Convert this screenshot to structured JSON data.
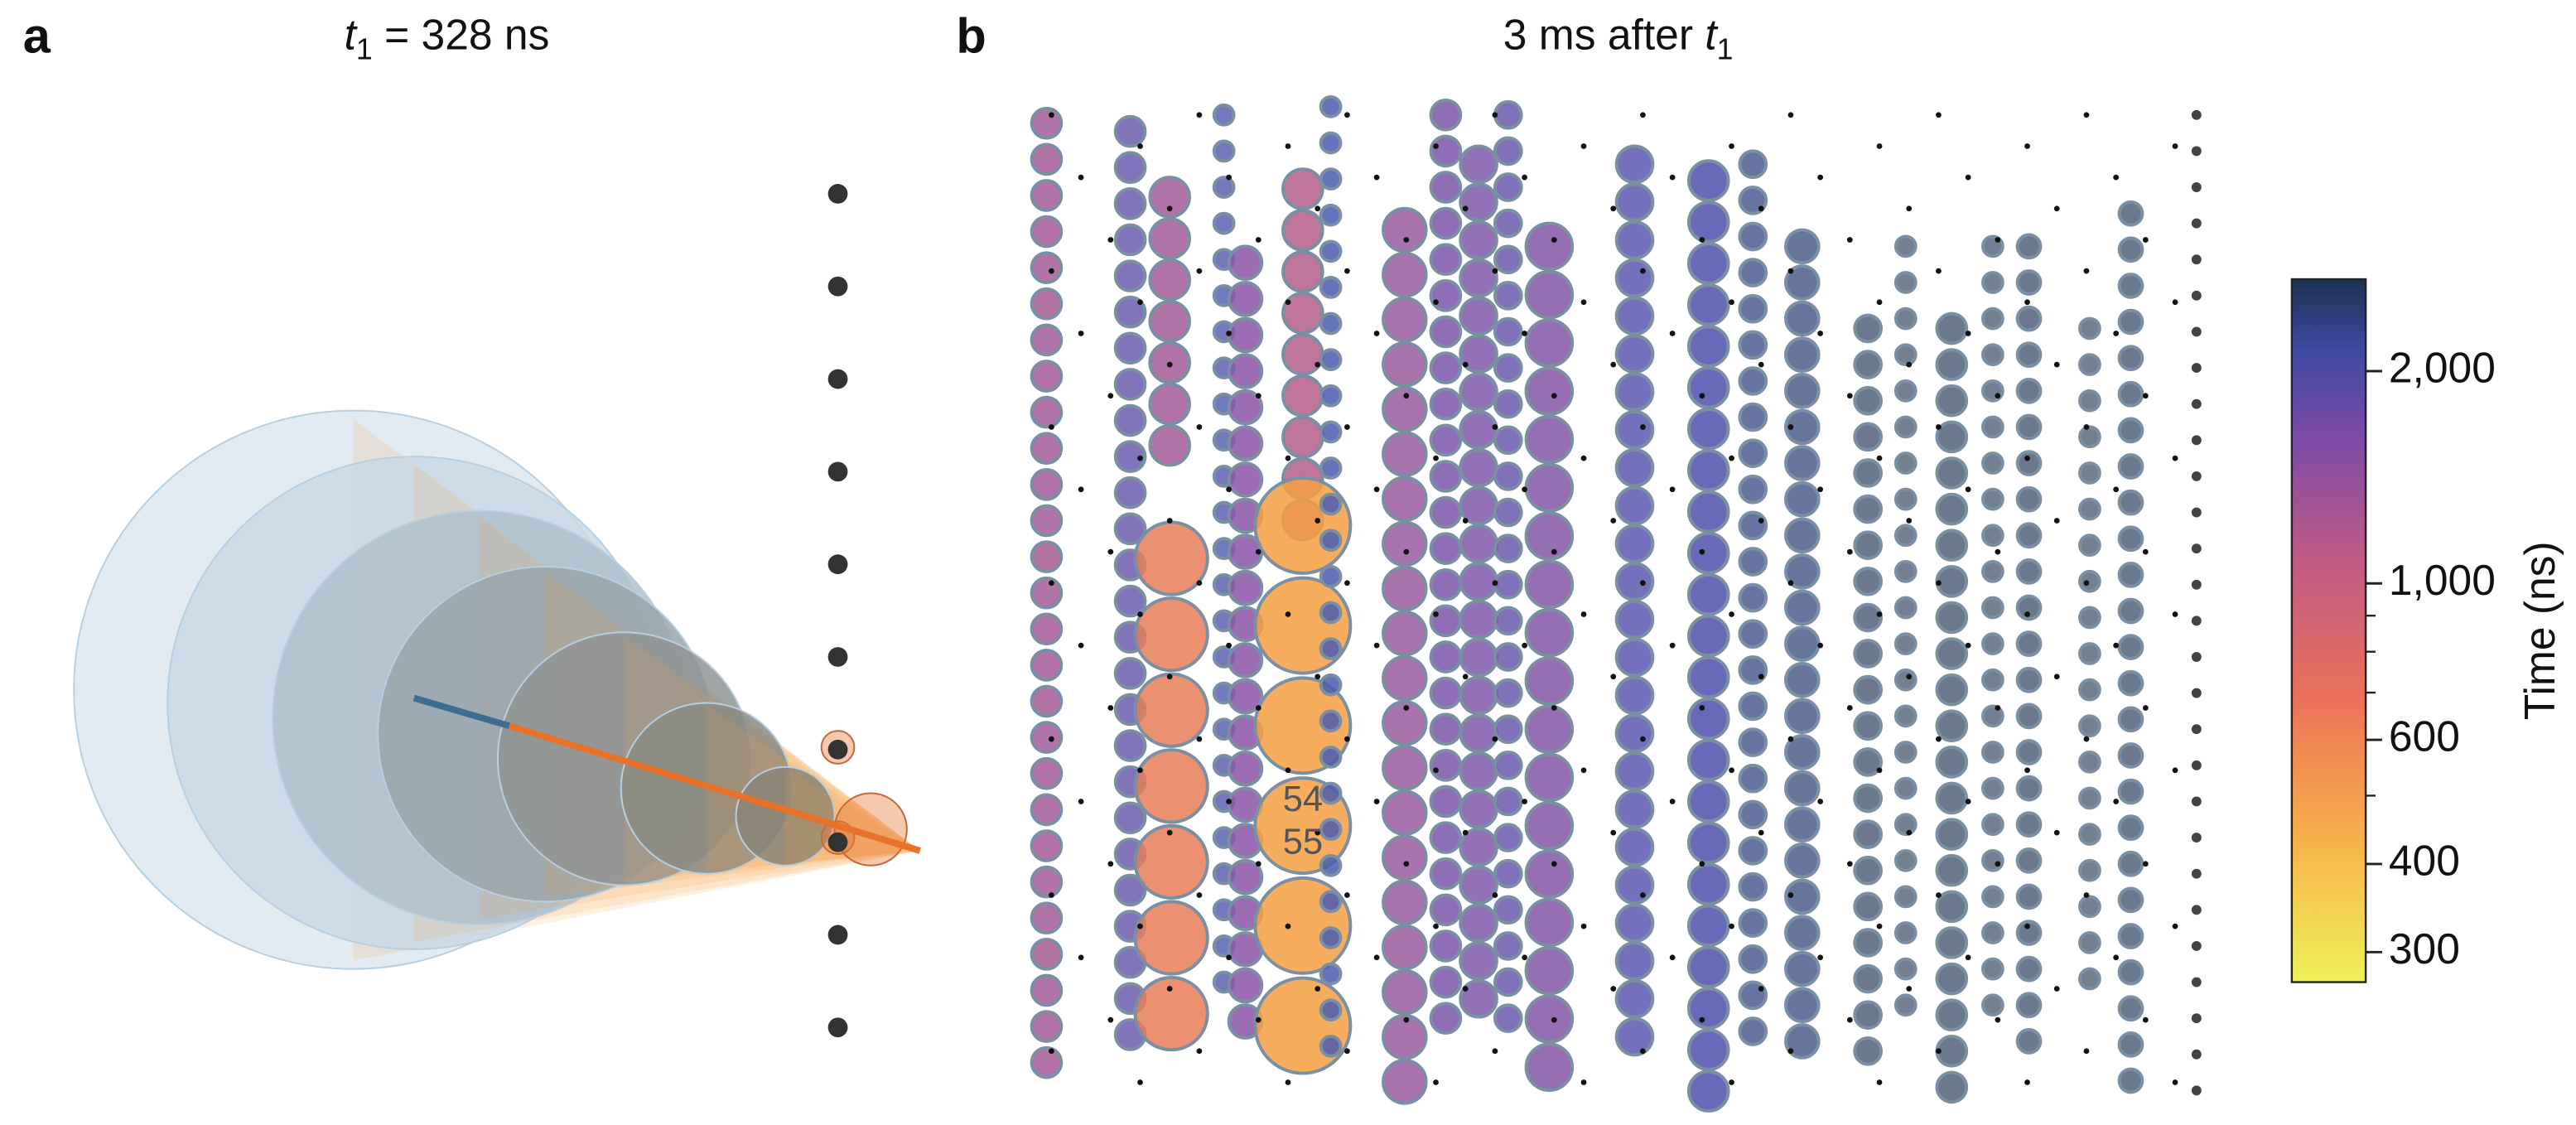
{
  "panel_a": {
    "letter": "a",
    "title": {
      "variable": "t",
      "subscript": "1",
      "rest": " = 328 ns"
    }
  },
  "panel_b": {
    "letter": "b",
    "title": {
      "prefix": "3 ms after ",
      "variable": "t",
      "subscript": "1"
    },
    "annotations": [
      "54",
      "55"
    ]
  },
  "colorbar": {
    "label": "Time (ns)",
    "log": true,
    "lim": [
      272,
      2700
    ],
    "ticks": [
      {
        "value": 300,
        "label": "300"
      },
      {
        "value": 400,
        "label": "400"
      },
      {
        "value": 600,
        "label": "600"
      },
      {
        "value": 1000,
        "label": "1,000"
      },
      {
        "value": 2000,
        "label": "2,000"
      }
    ],
    "minor_ticks": [
      500,
      700,
      800,
      900
    ]
  }
}
